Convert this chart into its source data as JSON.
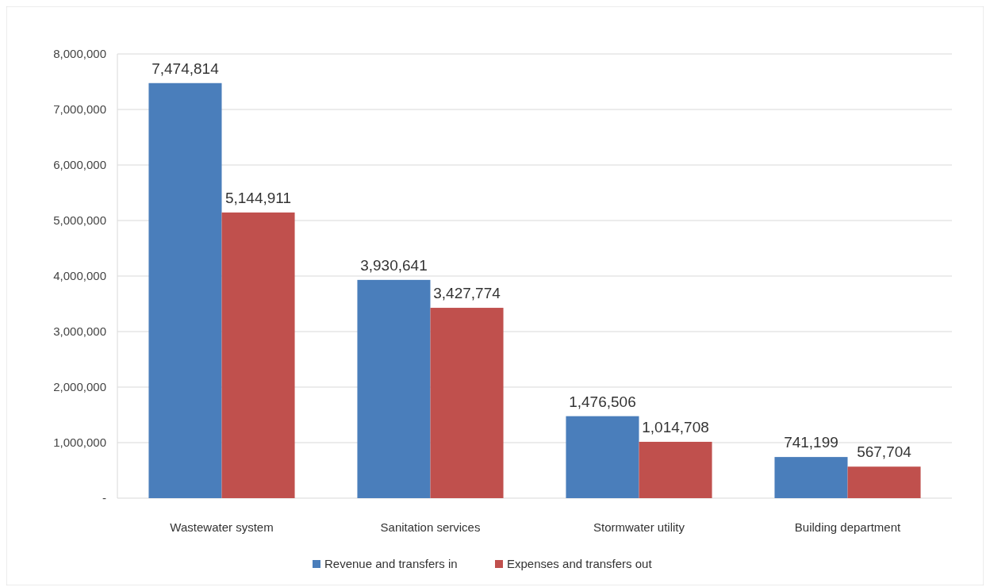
{
  "chart_data": {
    "type": "bar",
    "categories": [
      "Wastewater system",
      "Sanitation services",
      "Stormwater utility",
      "Building department"
    ],
    "series": [
      {
        "name": "Revenue and transfers in",
        "color": "#4a7ebb",
        "values": [
          7474814,
          3930641,
          1476506,
          741199
        ],
        "value_labels": [
          "7,474,814",
          "3,930,641",
          "1,476,506",
          "741,199"
        ]
      },
      {
        "name": "Expenses and transfers out",
        "color": "#c0504d",
        "values": [
          5144911,
          3427774,
          1014708,
          567704
        ],
        "value_labels": [
          "5,144,911",
          "3,427,774",
          "1,014,708",
          "567,704"
        ]
      }
    ],
    "ylim": [
      0,
      8000000
    ],
    "yticks": [
      {
        "value": 0,
        "label": "-"
      },
      {
        "value": 1000000,
        "label": "1,000,000"
      },
      {
        "value": 2000000,
        "label": "2,000,000"
      },
      {
        "value": 3000000,
        "label": "3,000,000"
      },
      {
        "value": 4000000,
        "label": "4,000,000"
      },
      {
        "value": 5000000,
        "label": "5,000,000"
      },
      {
        "value": 6000000,
        "label": "6,000,000"
      },
      {
        "value": 7000000,
        "label": "7,000,000"
      },
      {
        "value": 8000000,
        "label": "8,000,000"
      }
    ],
    "grid": "y",
    "legend": "bottom"
  }
}
